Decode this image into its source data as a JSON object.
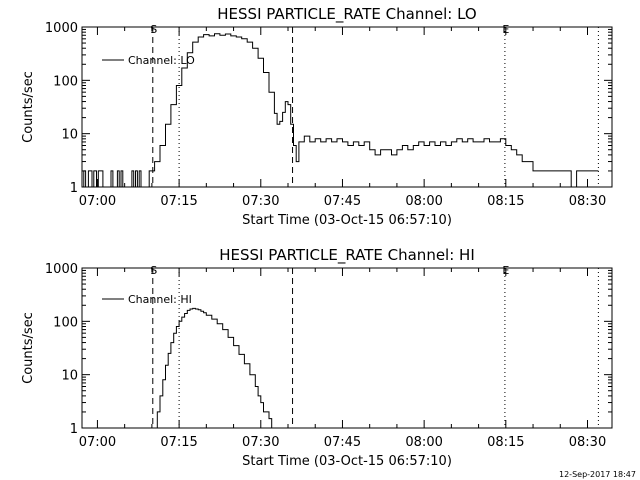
{
  "footer": {
    "timestamp": "12-Sep-2017 18:47"
  },
  "chart_data": [
    {
      "type": "line",
      "title": "HESSI PARTICLE_RATE Channel: LO",
      "xlabel": "Start Time (03-Oct-15 06:57:10)",
      "ylabel": "Counts/sec",
      "y_scale": "log",
      "ylim": [
        1,
        1000
      ],
      "xlim": [
        "06:57:10",
        "08:34:30"
      ],
      "yticks": [
        "1",
        "10",
        "100",
        "1000"
      ],
      "xticks": [
        "07:00",
        "07:15",
        "07:30",
        "07:45",
        "08:00",
        "08:15",
        "08:30"
      ],
      "legend": {
        "position": "top-left",
        "entries": [
          "Channel: LO"
        ]
      },
      "markers": [
        {
          "time": "07:10:10",
          "style": "dashed",
          "label": "S"
        },
        {
          "time": "07:15:00",
          "style": "dotted",
          "label": ""
        },
        {
          "time": "07:35:50",
          "style": "dashed",
          "label": ""
        },
        {
          "time": "08:14:50",
          "style": "dotted",
          "label": "E"
        },
        {
          "time": "08:32:00",
          "style": "dotted",
          "label": ""
        }
      ],
      "series": [
        {
          "name": "Channel: LO",
          "points": [
            [
              "06:57:10",
              1
            ],
            [
              "06:57:30",
              2
            ],
            [
              "06:57:50",
              1
            ],
            [
              "06:58:20",
              2
            ],
            [
              "06:58:40",
              2
            ],
            [
              "06:59:00",
              1
            ],
            [
              "06:59:20",
              2
            ],
            [
              "06:59:50",
              1
            ],
            [
              "07:00:10",
              2
            ],
            [
              "07:00:40",
              2
            ],
            [
              "07:01:00",
              1
            ],
            [
              "07:02:00",
              1
            ],
            [
              "07:02:30",
              2
            ],
            [
              "07:02:50",
              1
            ],
            [
              "07:03:20",
              1
            ],
            [
              "07:03:40",
              2
            ],
            [
              "07:04:00",
              1
            ],
            [
              "07:04:20",
              2
            ],
            [
              "07:04:40",
              1
            ],
            [
              "07:06:00",
              1
            ],
            [
              "07:06:20",
              2
            ],
            [
              "07:06:40",
              1
            ],
            [
              "07:07:00",
              2
            ],
            [
              "07:07:20",
              1
            ],
            [
              "07:07:40",
              2
            ],
            [
              "07:08:00",
              1
            ],
            [
              "07:09:00",
              1
            ],
            [
              "07:09:30",
              2
            ],
            [
              "07:10:30",
              3
            ],
            [
              "07:11:30",
              6
            ],
            [
              "07:12:30",
              15
            ],
            [
              "07:13:30",
              35
            ],
            [
              "07:14:30",
              80
            ],
            [
              "07:15:30",
              170
            ],
            [
              "07:16:30",
              330
            ],
            [
              "07:17:30",
              520
            ],
            [
              "07:18:30",
              650
            ],
            [
              "07:19:30",
              720
            ],
            [
              "07:20:30",
              680
            ],
            [
              "07:21:30",
              750
            ],
            [
              "07:22:30",
              700
            ],
            [
              "07:23:30",
              740
            ],
            [
              "07:24:30",
              680
            ],
            [
              "07:25:30",
              650
            ],
            [
              "07:26:30",
              600
            ],
            [
              "07:27:30",
              520
            ],
            [
              "07:28:30",
              400
            ],
            [
              "07:29:30",
              260
            ],
            [
              "07:30:30",
              140
            ],
            [
              "07:31:30",
              60
            ],
            [
              "07:32:30",
              24
            ],
            [
              "07:33:00",
              15
            ],
            [
              "07:33:30",
              17
            ],
            [
              "07:34:00",
              25
            ],
            [
              "07:34:30",
              40
            ],
            [
              "07:35:00",
              35
            ],
            [
              "07:35:30",
              15
            ],
            [
              "07:36:00",
              6
            ],
            [
              "07:36:30",
              3
            ],
            [
              "07:37:00",
              7
            ],
            [
              "07:38:00",
              9
            ],
            [
              "07:39:00",
              7
            ],
            [
              "07:40:00",
              8
            ],
            [
              "07:41:00",
              7
            ],
            [
              "07:42:00",
              8
            ],
            [
              "07:43:00",
              7
            ],
            [
              "07:44:00",
              8
            ],
            [
              "07:45:00",
              7
            ],
            [
              "07:46:00",
              6
            ],
            [
              "07:47:00",
              7
            ],
            [
              "07:48:00",
              6
            ],
            [
              "07:49:00",
              7
            ],
            [
              "07:50:00",
              5
            ],
            [
              "07:51:00",
              4
            ],
            [
              "07:52:00",
              5
            ],
            [
              "07:53:00",
              5
            ],
            [
              "07:54:00",
              4
            ],
            [
              "07:55:00",
              5
            ],
            [
              "07:56:00",
              6
            ],
            [
              "07:57:00",
              5
            ],
            [
              "07:58:00",
              6
            ],
            [
              "07:59:00",
              7
            ],
            [
              "08:00:00",
              6
            ],
            [
              "08:01:00",
              7
            ],
            [
              "08:02:00",
              6
            ],
            [
              "08:03:00",
              7
            ],
            [
              "08:04:00",
              6
            ],
            [
              "08:05:00",
              7
            ],
            [
              "08:06:00",
              8
            ],
            [
              "08:07:00",
              7
            ],
            [
              "08:08:00",
              8
            ],
            [
              "08:09:00",
              7
            ],
            [
              "08:10:00",
              7
            ],
            [
              "08:11:00",
              8
            ],
            [
              "08:12:00",
              7
            ],
            [
              "08:13:00",
              7
            ],
            [
              "08:14:00",
              8
            ],
            [
              "08:15:00",
              6
            ],
            [
              "08:16:00",
              5
            ],
            [
              "08:17:00",
              4
            ],
            [
              "08:18:00",
              3
            ],
            [
              "08:19:00",
              3
            ],
            [
              "08:20:00",
              2
            ],
            [
              "08:21:00",
              2
            ],
            [
              "08:22:00",
              2
            ],
            [
              "08:23:00",
              2
            ],
            [
              "08:24:00",
              2
            ],
            [
              "08:25:00",
              2
            ],
            [
              "08:26:00",
              2
            ],
            [
              "08:27:00",
              1
            ],
            [
              "08:28:00",
              2
            ],
            [
              "08:29:00",
              2
            ],
            [
              "08:30:00",
              2
            ],
            [
              "08:31:00",
              2
            ],
            [
              "08:32:00",
              2
            ]
          ]
        }
      ]
    },
    {
      "type": "line",
      "title": "HESSI PARTICLE_RATE Channel: HI",
      "xlabel": "Start Time (03-Oct-15 06:57:10)",
      "ylabel": "Counts/sec",
      "y_scale": "log",
      "ylim": [
        1,
        1000
      ],
      "xlim": [
        "06:57:10",
        "08:34:30"
      ],
      "yticks": [
        "1",
        "10",
        "100",
        "1000"
      ],
      "xticks": [
        "07:00",
        "07:15",
        "07:30",
        "07:45",
        "08:00",
        "08:15",
        "08:30"
      ],
      "legend": {
        "position": "top-left",
        "entries": [
          "Channel: HI"
        ]
      },
      "markers": [
        {
          "time": "07:10:10",
          "style": "dashed",
          "label": "S"
        },
        {
          "time": "07:15:00",
          "style": "dotted",
          "label": ""
        },
        {
          "time": "07:35:50",
          "style": "dashed",
          "label": ""
        },
        {
          "time": "08:14:50",
          "style": "dotted",
          "label": "E"
        },
        {
          "time": "08:32:00",
          "style": "dotted",
          "label": ""
        }
      ],
      "series": [
        {
          "name": "Channel: HI",
          "points": [
            [
              "07:10:30",
              1
            ],
            [
              "07:11:00",
              2
            ],
            [
              "07:11:30",
              4
            ],
            [
              "07:12:00",
              8
            ],
            [
              "07:12:30",
              15
            ],
            [
              "07:13:00",
              25
            ],
            [
              "07:13:30",
              40
            ],
            [
              "07:14:00",
              60
            ],
            [
              "07:14:30",
              80
            ],
            [
              "07:15:00",
              100
            ],
            [
              "07:15:30",
              120
            ],
            [
              "07:16:00",
              140
            ],
            [
              "07:16:30",
              160
            ],
            [
              "07:17:00",
              170
            ],
            [
              "07:17:30",
              175
            ],
            [
              "07:18:00",
              170
            ],
            [
              "07:18:30",
              165
            ],
            [
              "07:19:00",
              155
            ],
            [
              "07:19:30",
              145
            ],
            [
              "07:20:00",
              130
            ],
            [
              "07:21:00",
              110
            ],
            [
              "07:22:00",
              90
            ],
            [
              "07:23:00",
              70
            ],
            [
              "07:24:00",
              50
            ],
            [
              "07:25:00",
              35
            ],
            [
              "07:26:00",
              24
            ],
            [
              "07:27:00",
              16
            ],
            [
              "07:28:00",
              10
            ],
            [
              "07:29:00",
              6
            ],
            [
              "07:29:30",
              4
            ],
            [
              "07:30:00",
              3
            ],
            [
              "07:30:30",
              2
            ],
            [
              "07:31:00",
              2
            ],
            [
              "07:31:30",
              1.5
            ],
            [
              "07:32:00",
              1
            ]
          ]
        }
      ]
    }
  ]
}
